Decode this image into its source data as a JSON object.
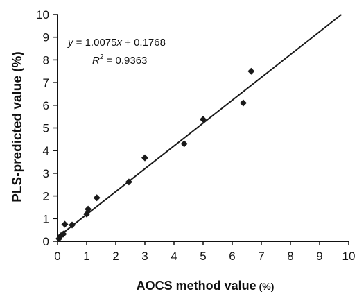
{
  "chart_data": {
    "type": "scatter",
    "title": "",
    "xlabel": "AOCS method value",
    "xlabel_unit": "(%)",
    "ylabel": "PLS-predicted value (%)",
    "xlim": [
      0,
      10
    ],
    "ylim": [
      0,
      10
    ],
    "xticks": [
      "0",
      "1",
      "2",
      "3",
      "4",
      "5",
      "6",
      "7",
      "8",
      "9",
      "10"
    ],
    "yticks": [
      "0",
      "1",
      "2",
      "3",
      "4",
      "5",
      "6",
      "7",
      "8",
      "9",
      "10"
    ],
    "grid": false,
    "legend": "none",
    "points": [
      {
        "x": 0.05,
        "y": 0.12
      },
      {
        "x": 0.12,
        "y": 0.25
      },
      {
        "x": 0.2,
        "y": 0.32
      },
      {
        "x": 0.25,
        "y": 0.75
      },
      {
        "x": 0.5,
        "y": 0.72
      },
      {
        "x": 1.0,
        "y": 1.2
      },
      {
        "x": 1.05,
        "y": 1.42
      },
      {
        "x": 1.35,
        "y": 1.92
      },
      {
        "x": 2.45,
        "y": 2.62
      },
      {
        "x": 3.0,
        "y": 3.68
      },
      {
        "x": 4.35,
        "y": 4.3
      },
      {
        "x": 5.0,
        "y": 5.38
      },
      {
        "x": 6.38,
        "y": 6.1
      },
      {
        "x": 6.65,
        "y": 7.5
      }
    ],
    "fit": {
      "slope": 1.0075,
      "intercept": 0.1768
    },
    "annotation": {
      "eq_y": "y",
      "eq_rest": " = 1.0075",
      "eq_x": "x",
      "eq_tail": " + 0.1768",
      "r2_r": "R",
      "r2_sup": "2",
      "r2_tail": " = 0.9363"
    },
    "marker_color": "#1a1a1a",
    "line_color": "#1a1a1a"
  }
}
